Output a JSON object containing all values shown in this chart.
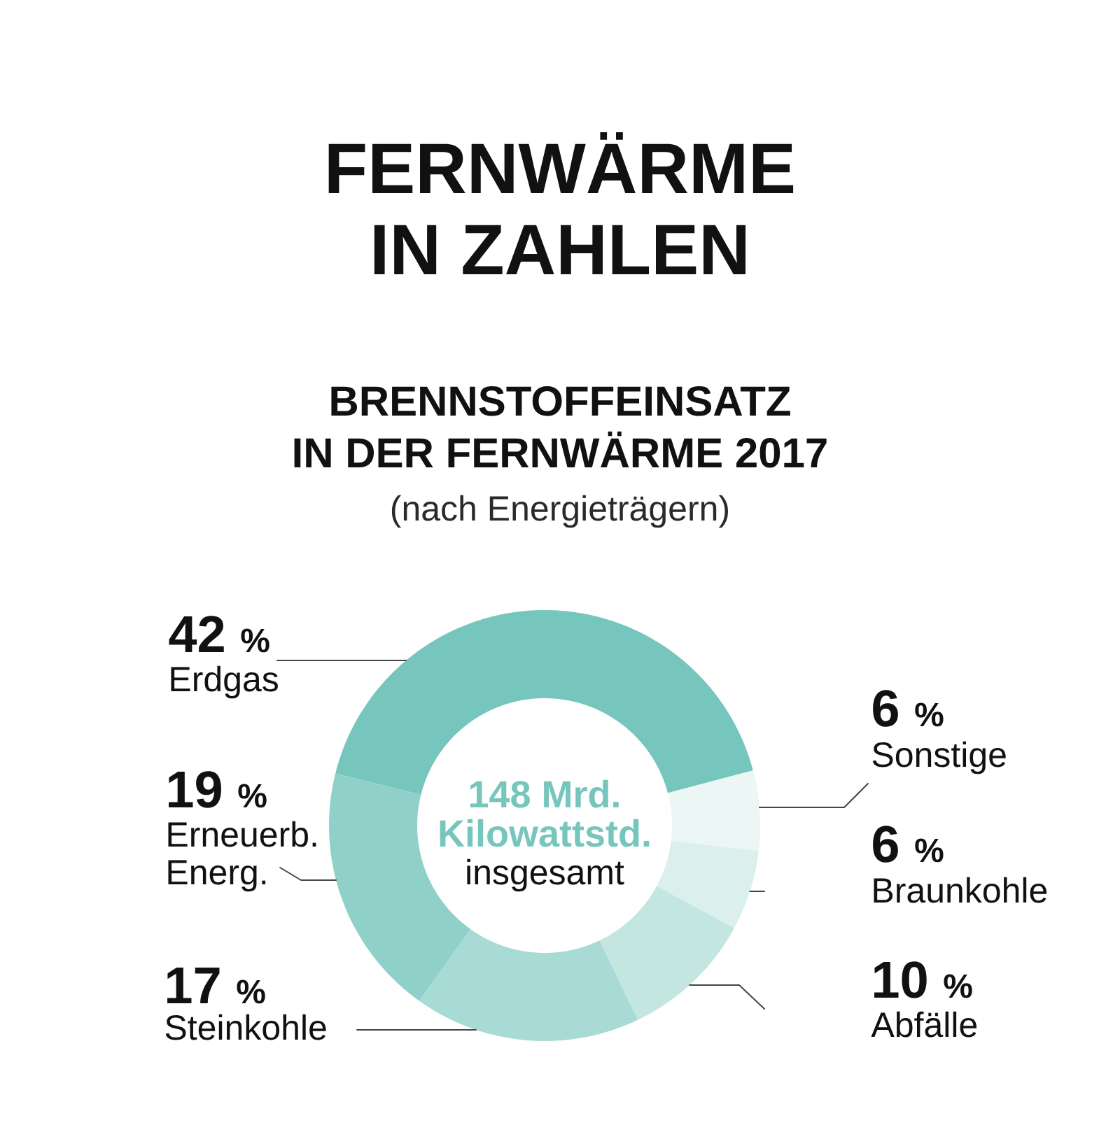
{
  "chart_data": {
    "type": "donut",
    "title": "FERNWÄRME IN ZAHLEN",
    "subtitle": "BRENNSTOFFEINSATZ IN DER FERNWÄRME 2017",
    "categories": [
      "Erdgas",
      "Sonstige",
      "Braunkohle",
      "Abfälle",
      "Steinkohle",
      "Erneuerb. Energ."
    ],
    "values": [
      42,
      6,
      6,
      10,
      17,
      19
    ],
    "value_labels": [
      "42 %",
      "6 %",
      "6 %",
      "10 %",
      "17 %",
      "19 %"
    ],
    "colors": [
      "#76c6bd",
      "#ecf7f5",
      "#dbf0ed",
      "#c3e6e1",
      "#a8dbd5",
      "#8fd0c8"
    ],
    "annotations": [
      "(nach Energieträgern)",
      "148 Mrd. Kilowattstd.",
      "insgesamt"
    ]
  }
}
